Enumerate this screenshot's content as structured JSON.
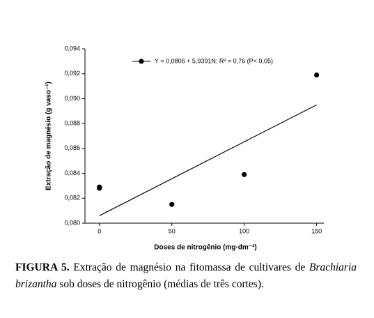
{
  "chart_data": {
    "type": "scatter",
    "xlabel": "Doses de nitrogênio (mg·dm⁻³)",
    "ylabel": "Extração de magnésio (g vaso⁻¹)",
    "series": [
      {
        "name": "Y = 0,0806 + 5,9391N; R² = 0,76 (P< 0,05)",
        "color": "#000000",
        "x": [
          0,
          0,
          50,
          100,
          150
        ],
        "values": [
          0.0828,
          0.0829,
          0.0815,
          0.0839,
          0.0919
        ]
      }
    ],
    "trend_line": {
      "x": [
        0,
        150
      ],
      "values": [
        0.0806,
        0.0895
      ],
      "color": "#000000"
    },
    "xlim": [
      -10,
      155
    ],
    "xticks": [
      0,
      50,
      100,
      150
    ],
    "ylim": [
      0.08,
      0.094
    ],
    "yticks": [
      {
        "value": 0.08,
        "label": "0,080"
      },
      {
        "value": 0.082,
        "label": "0,082"
      },
      {
        "value": 0.084,
        "label": "0,084"
      },
      {
        "value": 0.086,
        "label": "0,086"
      },
      {
        "value": 0.088,
        "label": "0,088"
      },
      {
        "value": 0.09,
        "label": "0,090"
      },
      {
        "value": 0.092,
        "label": "0,092"
      },
      {
        "value": 0.094,
        "label": "0,094"
      }
    ],
    "legend": "top"
  },
  "caption": {
    "label": "FIGURA 5.",
    "text1": "Extração de magnésio na fitomassa de cultivares de",
    "species": "Brachiaria brizantha",
    "text2": "sob doses de nitrogênio (médias de três cortes)."
  }
}
